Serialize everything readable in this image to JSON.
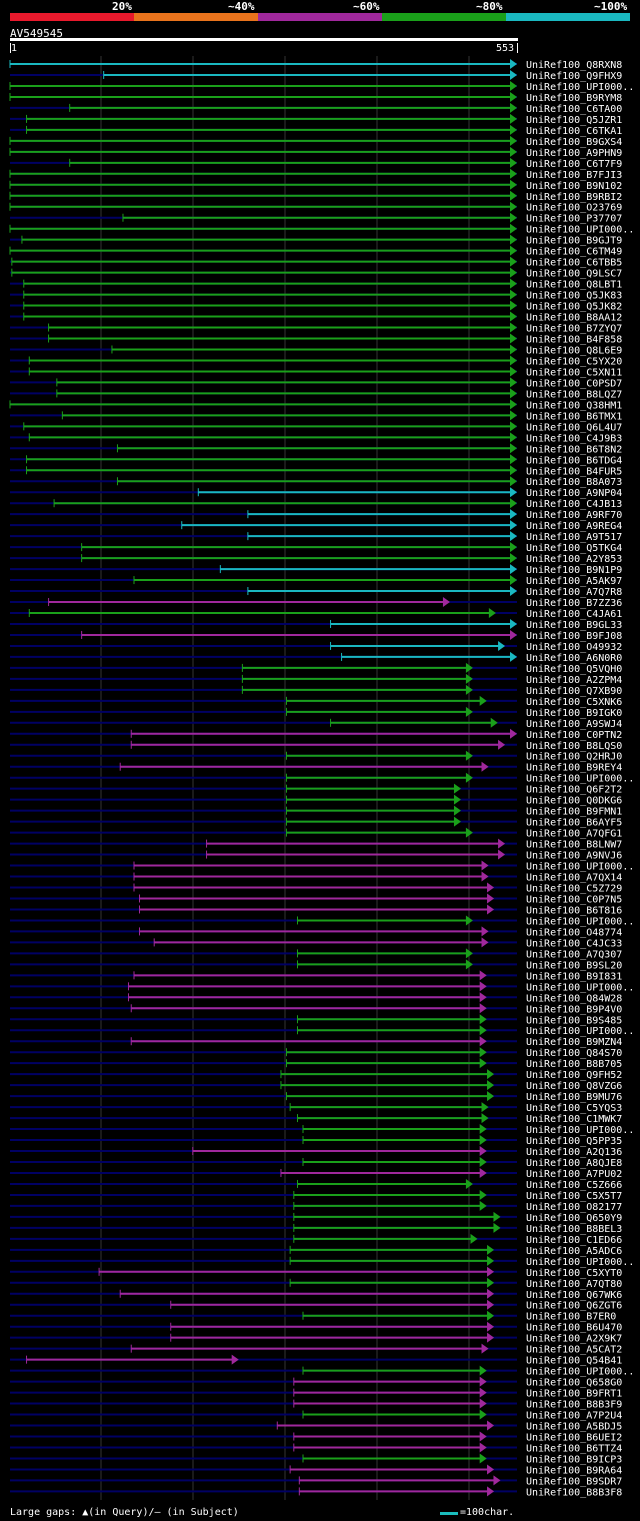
{
  "colors": {
    "red": "#e8192c",
    "orange": "#e8731c",
    "purple": "#a0289c",
    "green": "#1aa01a",
    "cyan": "#1ab8c0",
    "navy": "#000064",
    "grid": "#333333",
    "marker": "#ffff99"
  },
  "legend": {
    "percent_labels": [
      "20%",
      "~40%",
      "~60%",
      "~80%",
      "~100%"
    ],
    "bar_colors": [
      "#e8192c",
      "#e8731c",
      "#a0289c",
      "#1aa01a",
      "#1ab8c0"
    ]
  },
  "query": {
    "name": "AV549545",
    "start": "1",
    "end": "553"
  },
  "footer": {
    "gaps_text": "Large gaps: ▲(in Query)/– (in Subject)",
    "scale_text": "=100char."
  },
  "chart_data": {
    "type": "alignment",
    "title": "AV549545",
    "x_range": [
      1,
      553
    ],
    "hits": [
      {
        "label": "UniRef100_Q8RXN8",
        "start": 1,
        "end": 553,
        "color": "cyan",
        "arrow": true
      },
      {
        "label": "UniRef100_Q9FHX9",
        "start": 103,
        "end": 553,
        "color": "cyan",
        "arrow": true
      },
      {
        "label": "UniRef100_UPI000..",
        "start": 1,
        "end": 553,
        "color": "green",
        "arrow": true
      },
      {
        "label": "UniRef100_B9RYM8",
        "start": 1,
        "end": 553,
        "color": "green",
        "arrow": true
      },
      {
        "label": "UniRef100_C6TA00",
        "start": 66,
        "end": 553,
        "color": "green",
        "arrow": true
      },
      {
        "label": "UniRef100_Q5JZR1",
        "start": 19,
        "end": 553,
        "color": "green",
        "arrow": true
      },
      {
        "label": "UniRef100_C6TKA1",
        "start": 19,
        "end": 553,
        "color": "green",
        "arrow": true
      },
      {
        "label": "UniRef100_B9GXS4",
        "start": 1,
        "end": 553,
        "color": "green",
        "arrow": true
      },
      {
        "label": "UniRef100_A9PHN9",
        "start": 1,
        "end": 553,
        "color": "green",
        "arrow": true
      },
      {
        "label": "UniRef100_C6T7F9",
        "start": 66,
        "end": 553,
        "color": "green",
        "arrow": true
      },
      {
        "label": "UniRef100_B7FJI3",
        "start": 1,
        "end": 553,
        "color": "green",
        "arrow": true
      },
      {
        "label": "UniRef100_B9N102",
        "start": 1,
        "end": 553,
        "color": "green",
        "arrow": true
      },
      {
        "label": "UniRef100_B9RBI2",
        "start": 1,
        "end": 553,
        "color": "green",
        "arrow": true
      },
      {
        "label": "UniRef100_O23769",
        "start": 1,
        "end": 553,
        "color": "green",
        "arrow": true
      },
      {
        "label": "UniRef100_P37707",
        "start": 124,
        "end": 553,
        "color": "green",
        "arrow": true
      },
      {
        "label": "UniRef100_UPI000..",
        "start": 1,
        "end": 553,
        "color": "green",
        "arrow": true
      },
      {
        "label": "UniRef100_B9GJT9",
        "start": 14,
        "end": 553,
        "color": "green",
        "arrow": true
      },
      {
        "label": "UniRef100_C6TM49",
        "start": 1,
        "end": 553,
        "color": "green",
        "arrow": true
      },
      {
        "label": "UniRef100_C6TBB5",
        "start": 3,
        "end": 553,
        "color": "green",
        "arrow": true
      },
      {
        "label": "UniRef100_Q9LSC7",
        "start": 3,
        "end": 553,
        "color": "green",
        "arrow": true
      },
      {
        "label": "UniRef100_Q8LBT1",
        "start": 16,
        "end": 553,
        "color": "green",
        "arrow": true
      },
      {
        "label": "UniRef100_Q5JK83",
        "start": 16,
        "end": 553,
        "color": "green",
        "arrow": true
      },
      {
        "label": "UniRef100_Q5JK82",
        "start": 16,
        "end": 553,
        "color": "green",
        "arrow": true
      },
      {
        "label": "UniRef100_B8AA12",
        "start": 16,
        "end": 553,
        "color": "green",
        "arrow": true
      },
      {
        "label": "UniRef100_B7ZYQ7",
        "start": 43,
        "end": 553,
        "color": "green",
        "arrow": true
      },
      {
        "label": "UniRef100_B4F858",
        "start": 43,
        "end": 553,
        "color": "green",
        "arrow": true
      },
      {
        "label": "UniRef100_Q8L6E9",
        "start": 112,
        "end": 553,
        "color": "green",
        "arrow": true
      },
      {
        "label": "UniRef100_C5YX20",
        "start": 22,
        "end": 553,
        "color": "green",
        "arrow": true
      },
      {
        "label": "UniRef100_C5XN11",
        "start": 22,
        "end": 553,
        "color": "green",
        "arrow": true
      },
      {
        "label": "UniRef100_C0PSD7",
        "start": 52,
        "end": 553,
        "color": "green",
        "arrow": true
      },
      {
        "label": "UniRef100_B8LQZ7",
        "start": 52,
        "end": 553,
        "color": "green",
        "arrow": true
      },
      {
        "label": "UniRef100_Q38HM1",
        "start": 1,
        "end": 553,
        "color": "green",
        "arrow": true
      },
      {
        "label": "UniRef100_B6TMX1",
        "start": 58,
        "end": 553,
        "color": "green",
        "arrow": true
      },
      {
        "label": "UniRef100_Q6L4U7",
        "start": 16,
        "end": 553,
        "color": "green",
        "arrow": true
      },
      {
        "label": "UniRef100_C4J9B3",
        "start": 22,
        "end": 553,
        "color": "green",
        "arrow": true
      },
      {
        "label": "UniRef100_B6T8N2",
        "start": 118,
        "end": 553,
        "color": "green",
        "arrow": true
      },
      {
        "label": "UniRef100_B6TDG4",
        "start": 19,
        "end": 553,
        "color": "green",
        "arrow": true
      },
      {
        "label": "UniRef100_B4FUR5",
        "start": 19,
        "end": 553,
        "color": "green",
        "arrow": true
      },
      {
        "label": "UniRef100_B8A073",
        "start": 118,
        "end": 553,
        "color": "green",
        "arrow": true
      },
      {
        "label": "UniRef100_A9NP04",
        "start": 206,
        "end": 553,
        "color": "cyan",
        "arrow": true
      },
      {
        "label": "UniRef100_C4JB13",
        "start": 49,
        "end": 553,
        "color": "green",
        "arrow": true
      },
      {
        "label": "UniRef100_A9RF70",
        "start": 260,
        "end": 553,
        "color": "cyan",
        "arrow": true
      },
      {
        "label": "UniRef100_A9REG4",
        "start": 188,
        "end": 553,
        "color": "cyan",
        "arrow": true
      },
      {
        "label": "UniRef100_A9T517",
        "start": 260,
        "end": 553,
        "color": "cyan",
        "arrow": true
      },
      {
        "label": "UniRef100_Q5TKG4",
        "start": 79,
        "end": 553,
        "color": "green",
        "arrow": true
      },
      {
        "label": "UniRef100_A2Y853",
        "start": 79,
        "end": 553,
        "color": "green",
        "arrow": true
      },
      {
        "label": "UniRef100_B9N1P9",
        "start": 230,
        "end": 553,
        "color": "cyan",
        "arrow": true
      },
      {
        "label": "UniRef100_A5AK97",
        "start": 136,
        "end": 553,
        "color": "green",
        "arrow": true
      },
      {
        "label": "UniRef100_A7Q7R8",
        "start": 260,
        "end": 553,
        "color": "cyan",
        "arrow": true
      },
      {
        "label": "UniRef100_B7ZZ36",
        "start": 43,
        "end": 480,
        "color": "purple",
        "arrow": true
      },
      {
        "label": "UniRef100_C4JA61",
        "start": 22,
        "end": 530,
        "color": "green",
        "arrow": true
      },
      {
        "label": "UniRef100_B9GL33",
        "start": 350,
        "end": 553,
        "color": "cyan",
        "arrow": true
      },
      {
        "label": "UniRef100_B9FJ08",
        "start": 79,
        "end": 553,
        "color": "purple",
        "arrow": true
      },
      {
        "label": "UniRef100_O49932",
        "start": 350,
        "end": 540,
        "color": "cyan",
        "arrow": true
      },
      {
        "label": "UniRef100_A6N0R0",
        "start": 362,
        "end": 553,
        "color": "cyan",
        "arrow": true
      },
      {
        "label": "UniRef100_Q5VQH0",
        "start": 254,
        "end": 505,
        "color": "green",
        "arrow": true
      },
      {
        "label": "UniRef100_A2ZPM4",
        "start": 254,
        "end": 505,
        "color": "green",
        "arrow": true
      },
      {
        "label": "UniRef100_Q7XB90",
        "start": 254,
        "end": 505,
        "color": "green",
        "arrow": true
      },
      {
        "label": "UniRef100_C5XNK6",
        "start": 302,
        "end": 520,
        "color": "green",
        "arrow": true
      },
      {
        "label": "UniRef100_B9IGK0",
        "start": 302,
        "end": 505,
        "color": "green",
        "arrow": true
      },
      {
        "label": "UniRef100_A9SWJ4",
        "start": 350,
        "end": 532,
        "color": "green",
        "arrow": true
      },
      {
        "label": "UniRef100_C0PTN2",
        "start": 133,
        "end": 553,
        "color": "purple",
        "arrow": true
      },
      {
        "label": "UniRef100_B8LQS0",
        "start": 133,
        "end": 540,
        "color": "purple",
        "arrow": true
      },
      {
        "label": "UniRef100_Q2HRJ0",
        "start": 302,
        "end": 505,
        "color": "green",
        "arrow": true
      },
      {
        "label": "UniRef100_B9REY4",
        "start": 121,
        "end": 522,
        "color": "purple",
        "arrow": true
      },
      {
        "label": "UniRef100_UPI000..",
        "start": 302,
        "end": 505,
        "color": "green",
        "arrow": true
      },
      {
        "label": "UniRef100_Q6F2T2",
        "start": 302,
        "end": 492,
        "color": "green",
        "arrow": true
      },
      {
        "label": "UniRef100_Q0DKG6",
        "start": 302,
        "end": 492,
        "color": "green",
        "arrow": true
      },
      {
        "label": "UniRef100_B9FMN1",
        "start": 302,
        "end": 492,
        "color": "green",
        "arrow": true
      },
      {
        "label": "UniRef100_B6AYF5",
        "start": 302,
        "end": 492,
        "color": "green",
        "arrow": true
      },
      {
        "label": "UniRef100_A7QFG1",
        "start": 302,
        "end": 505,
        "color": "green",
        "arrow": true
      },
      {
        "label": "UniRef100_B8LNW7",
        "start": 215,
        "end": 540,
        "color": "purple",
        "arrow": true
      },
      {
        "label": "UniRef100_A9NVJ6",
        "start": 215,
        "end": 540,
        "color": "purple",
        "arrow": true
      },
      {
        "label": "UniRef100_UPI000..",
        "start": 136,
        "end": 522,
        "color": "purple",
        "arrow": true
      },
      {
        "label": "UniRef100_A7QX14",
        "start": 136,
        "end": 522,
        "color": "purple",
        "arrow": true
      },
      {
        "label": "UniRef100_C5Z729",
        "start": 136,
        "end": 528,
        "color": "purple",
        "arrow": true
      },
      {
        "label": "UniRef100_C0P7N5",
        "start": 142,
        "end": 528,
        "color": "purple",
        "arrow": true
      },
      {
        "label": "UniRef100_B6T816",
        "start": 142,
        "end": 528,
        "color": "purple",
        "arrow": true
      },
      {
        "label": "UniRef100_UPI000..",
        "start": 314,
        "end": 505,
        "color": "green",
        "arrow": true
      },
      {
        "label": "UniRef100_O48774",
        "start": 142,
        "end": 522,
        "color": "purple",
        "arrow": true
      },
      {
        "label": "UniRef100_C4JC33",
        "start": 158,
        "end": 522,
        "color": "purple",
        "arrow": true
      },
      {
        "label": "UniRef100_A7Q307",
        "start": 314,
        "end": 505,
        "color": "green",
        "arrow": true
      },
      {
        "label": "UniRef100_B9SL20",
        "start": 314,
        "end": 505,
        "color": "green",
        "arrow": true
      },
      {
        "label": "UniRef100_B9I831",
        "start": 136,
        "end": 520,
        "color": "purple",
        "arrow": true
      },
      {
        "label": "UniRef100_UPI000..",
        "start": 130,
        "end": 520,
        "color": "purple",
        "arrow": true
      },
      {
        "label": "UniRef100_Q84W28",
        "start": 130,
        "end": 520,
        "color": "purple",
        "arrow": true
      },
      {
        "label": "UniRef100_B9P4V0",
        "start": 133,
        "end": 520,
        "color": "purple",
        "arrow": true
      },
      {
        "label": "UniRef100_B9S485",
        "start": 314,
        "end": 520,
        "color": "green",
        "arrow": true
      },
      {
        "label": "UniRef100_UPI000..",
        "start": 314,
        "end": 520,
        "color": "green",
        "arrow": true
      },
      {
        "label": "UniRef100_B9MZN4",
        "start": 133,
        "end": 520,
        "color": "purple",
        "arrow": true
      },
      {
        "label": "UniRef100_Q84S70",
        "start": 302,
        "end": 520,
        "color": "green",
        "arrow": true
      },
      {
        "label": "UniRef100_B8B705",
        "start": 302,
        "end": 520,
        "color": "green",
        "arrow": true
      },
      {
        "label": "UniRef100_Q9FH52",
        "start": 296,
        "end": 528,
        "color": "green",
        "arrow": true
      },
      {
        "label": "UniRef100_Q8VZG6",
        "start": 296,
        "end": 528,
        "color": "green",
        "arrow": true
      },
      {
        "label": "UniRef100_B9MU76",
        "start": 302,
        "end": 528,
        "color": "green",
        "arrow": true
      },
      {
        "label": "UniRef100_C5YQS3",
        "start": 306,
        "end": 522,
        "color": "green",
        "arrow": true
      },
      {
        "label": "UniRef100_C1MWK7",
        "start": 314,
        "end": 522,
        "color": "green",
        "arrow": true
      },
      {
        "label": "UniRef100_UPI000..",
        "start": 320,
        "end": 520,
        "color": "green",
        "arrow": true
      },
      {
        "label": "UniRef100_Q5PP35",
        "start": 320,
        "end": 520,
        "color": "green",
        "arrow": true
      },
      {
        "label": "UniRef100_A2Q136",
        "start": 200,
        "end": 520,
        "color": "purple",
        "arrow": true
      },
      {
        "label": "UniRef100_A8QJE8",
        "start": 320,
        "end": 520,
        "color": "green",
        "arrow": true
      },
      {
        "label": "UniRef100_A7PU02",
        "start": 296,
        "end": 520,
        "color": "purple",
        "arrow": true
      },
      {
        "label": "UniRef100_C5Z666",
        "start": 314,
        "end": 505,
        "color": "green",
        "arrow": true
      },
      {
        "label": "UniRef100_C5X5T7",
        "start": 310,
        "end": 520,
        "color": "green",
        "arrow": true
      },
      {
        "label": "UniRef100_O82177",
        "start": 310,
        "end": 520,
        "color": "green",
        "arrow": true
      },
      {
        "label": "UniRef100_Q650Y9",
        "start": 310,
        "end": 535,
        "color": "green",
        "arrow": true
      },
      {
        "label": "UniRef100_B8BEL3",
        "start": 310,
        "end": 535,
        "color": "green",
        "arrow": true
      },
      {
        "label": "UniRef100_C1ED66",
        "start": 310,
        "end": 510,
        "color": "green",
        "arrow": true
      },
      {
        "label": "UniRef100_A5ADC6",
        "start": 306,
        "end": 528,
        "color": "green",
        "arrow": true
      },
      {
        "label": "UniRef100_UPI000..",
        "start": 306,
        "end": 528,
        "color": "green",
        "arrow": true
      },
      {
        "label": "UniRef100_C5XYT0",
        "start": 98,
        "end": 528,
        "color": "purple",
        "arrow": true
      },
      {
        "label": "UniRef100_A7QT80",
        "start": 306,
        "end": 528,
        "color": "green",
        "arrow": true
      },
      {
        "label": "UniRef100_Q67WK6",
        "start": 121,
        "end": 528,
        "color": "purple",
        "arrow": true
      },
      {
        "label": "UniRef100_Q6ZGT6",
        "start": 176,
        "end": 528,
        "color": "purple",
        "arrow": true
      },
      {
        "label": "UniRef100_B7ER0",
        "start": 320,
        "end": 528,
        "color": "green",
        "arrow": true
      },
      {
        "label": "UniRef100_B6U470",
        "start": 176,
        "end": 528,
        "color": "purple",
        "arrow": true
      },
      {
        "label": "UniRef100_A2X9K7",
        "start": 176,
        "end": 528,
        "color": "purple",
        "arrow": true
      },
      {
        "label": "UniRef100_A5CAT2",
        "start": 133,
        "end": 522,
        "color": "purple",
        "arrow": true
      },
      {
        "label": "UniRef100_Q54B41",
        "start": 19,
        "end": 250,
        "color": "purple",
        "arrow": true
      },
      {
        "label": "UniRef100_UPI000..",
        "start": 320,
        "end": 520,
        "color": "green",
        "arrow": true
      },
      {
        "label": "UniRef100_Q658G0",
        "start": 310,
        "end": 520,
        "color": "purple",
        "arrow": true
      },
      {
        "label": "UniRef100_B9FRT1",
        "start": 310,
        "end": 520,
        "color": "purple",
        "arrow": true
      },
      {
        "label": "UniRef100_B8B3F9",
        "start": 310,
        "end": 520,
        "color": "purple",
        "arrow": true
      },
      {
        "label": "UniRef100_A7P2U4",
        "start": 320,
        "end": 520,
        "color": "green",
        "arrow": true
      },
      {
        "label": "UniRef100_A5BDJ5",
        "start": 292,
        "end": 528,
        "color": "purple",
        "arrow": true
      },
      {
        "label": "UniRef100_B6UEI2",
        "start": 310,
        "end": 520,
        "color": "purple",
        "arrow": true
      },
      {
        "label": "UniRef100_B6TTZ4",
        "start": 310,
        "end": 520,
        "color": "purple",
        "arrow": true
      },
      {
        "label": "UniRef100_B9ICP3",
        "start": 320,
        "end": 520,
        "color": "green",
        "arrow": true
      },
      {
        "label": "UniRef100_B9RA64",
        "start": 306,
        "end": 528,
        "color": "purple",
        "arrow": true
      },
      {
        "label": "UniRef100_B9SDR7",
        "start": 316,
        "end": 535,
        "color": "purple",
        "arrow": true
      },
      {
        "label": "UniRef100_B8B3F8",
        "start": 316,
        "end": 528,
        "color": "purple",
        "arrow": true
      }
    ]
  }
}
